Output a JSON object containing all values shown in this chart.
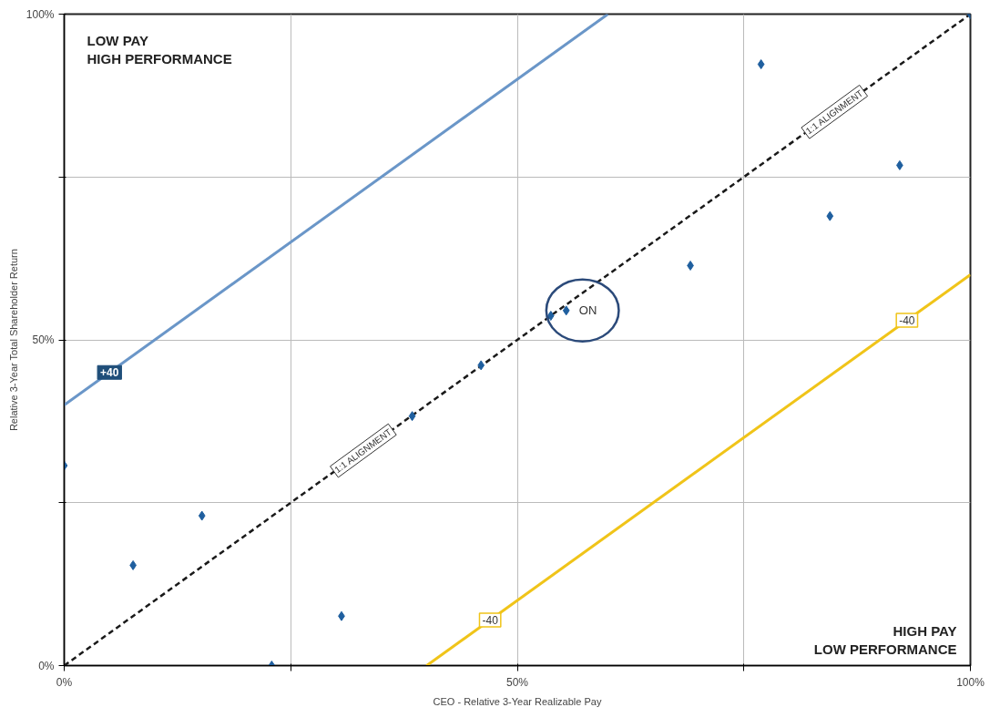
{
  "chart_data": {
    "type": "scatter",
    "xlabel": "CEO - Relative 3-Year Realizable Pay",
    "ylabel": "Relative 3-Year Total Shareholder Return",
    "xlim": [
      0,
      100
    ],
    "ylim": [
      0,
      100
    ],
    "xticks": [
      {
        "value": 0,
        "label": "0%"
      },
      {
        "value": 25,
        "label": null
      },
      {
        "value": 50,
        "label": "50%"
      },
      {
        "value": 75,
        "label": null
      },
      {
        "value": 100,
        "label": "100%"
      }
    ],
    "yticks": [
      {
        "value": 0,
        "label": "0%"
      },
      {
        "value": 25,
        "label": null
      },
      {
        "value": 50,
        "label": "50%"
      },
      {
        "value": 75,
        "label": null
      },
      {
        "value": 100,
        "label": "100%"
      }
    ],
    "grid": true,
    "series": [
      {
        "type": "line",
        "color": "#6a96c8",
        "line_style": "solid",
        "marker": "none",
        "x": [
          0,
          60
        ],
        "values": [
          40,
          100
        ]
      },
      {
        "type": "line",
        "color": "#f0c419",
        "line_style": "solid",
        "marker": "none",
        "x": [
          40,
          100
        ],
        "values": [
          0,
          60
        ]
      },
      {
        "type": "line",
        "color": "#1a1a1a",
        "line_style": "dashed",
        "marker": "none",
        "x": [
          0,
          100
        ],
        "values": [
          0,
          100
        ]
      },
      {
        "color": "#1f5f9f",
        "marker": "diamond",
        "x": [
          0,
          7.6,
          15.2,
          22.9,
          30.6,
          38.4,
          46.0,
          53.7,
          55.4,
          69.1,
          76.9,
          84.5,
          92.2,
          100
        ],
        "values": [
          30.7,
          15.4,
          23.0,
          0,
          7.6,
          38.3,
          46.1,
          53.7,
          54.5,
          61.4,
          92.3,
          69.0,
          76.8,
          100
        ]
      }
    ],
    "annotations": [
      "LOW PAY\nHIGH PERFORMANCE",
      "HIGH PAY\nLOW PERFORMANCE",
      {
        "text": "+40",
        "x": 5,
        "y": 45
      },
      {
        "text": "-40",
        "x": 47,
        "y": 7
      },
      {
        "text": "-40",
        "x": 93,
        "y": 53
      },
      {
        "text": "1:1 ALIGNMENT",
        "x": 33,
        "y": 33
      },
      {
        "text": "1:1 ALIGNMENT",
        "x": 85,
        "y": 85
      },
      "ON"
    ]
  }
}
